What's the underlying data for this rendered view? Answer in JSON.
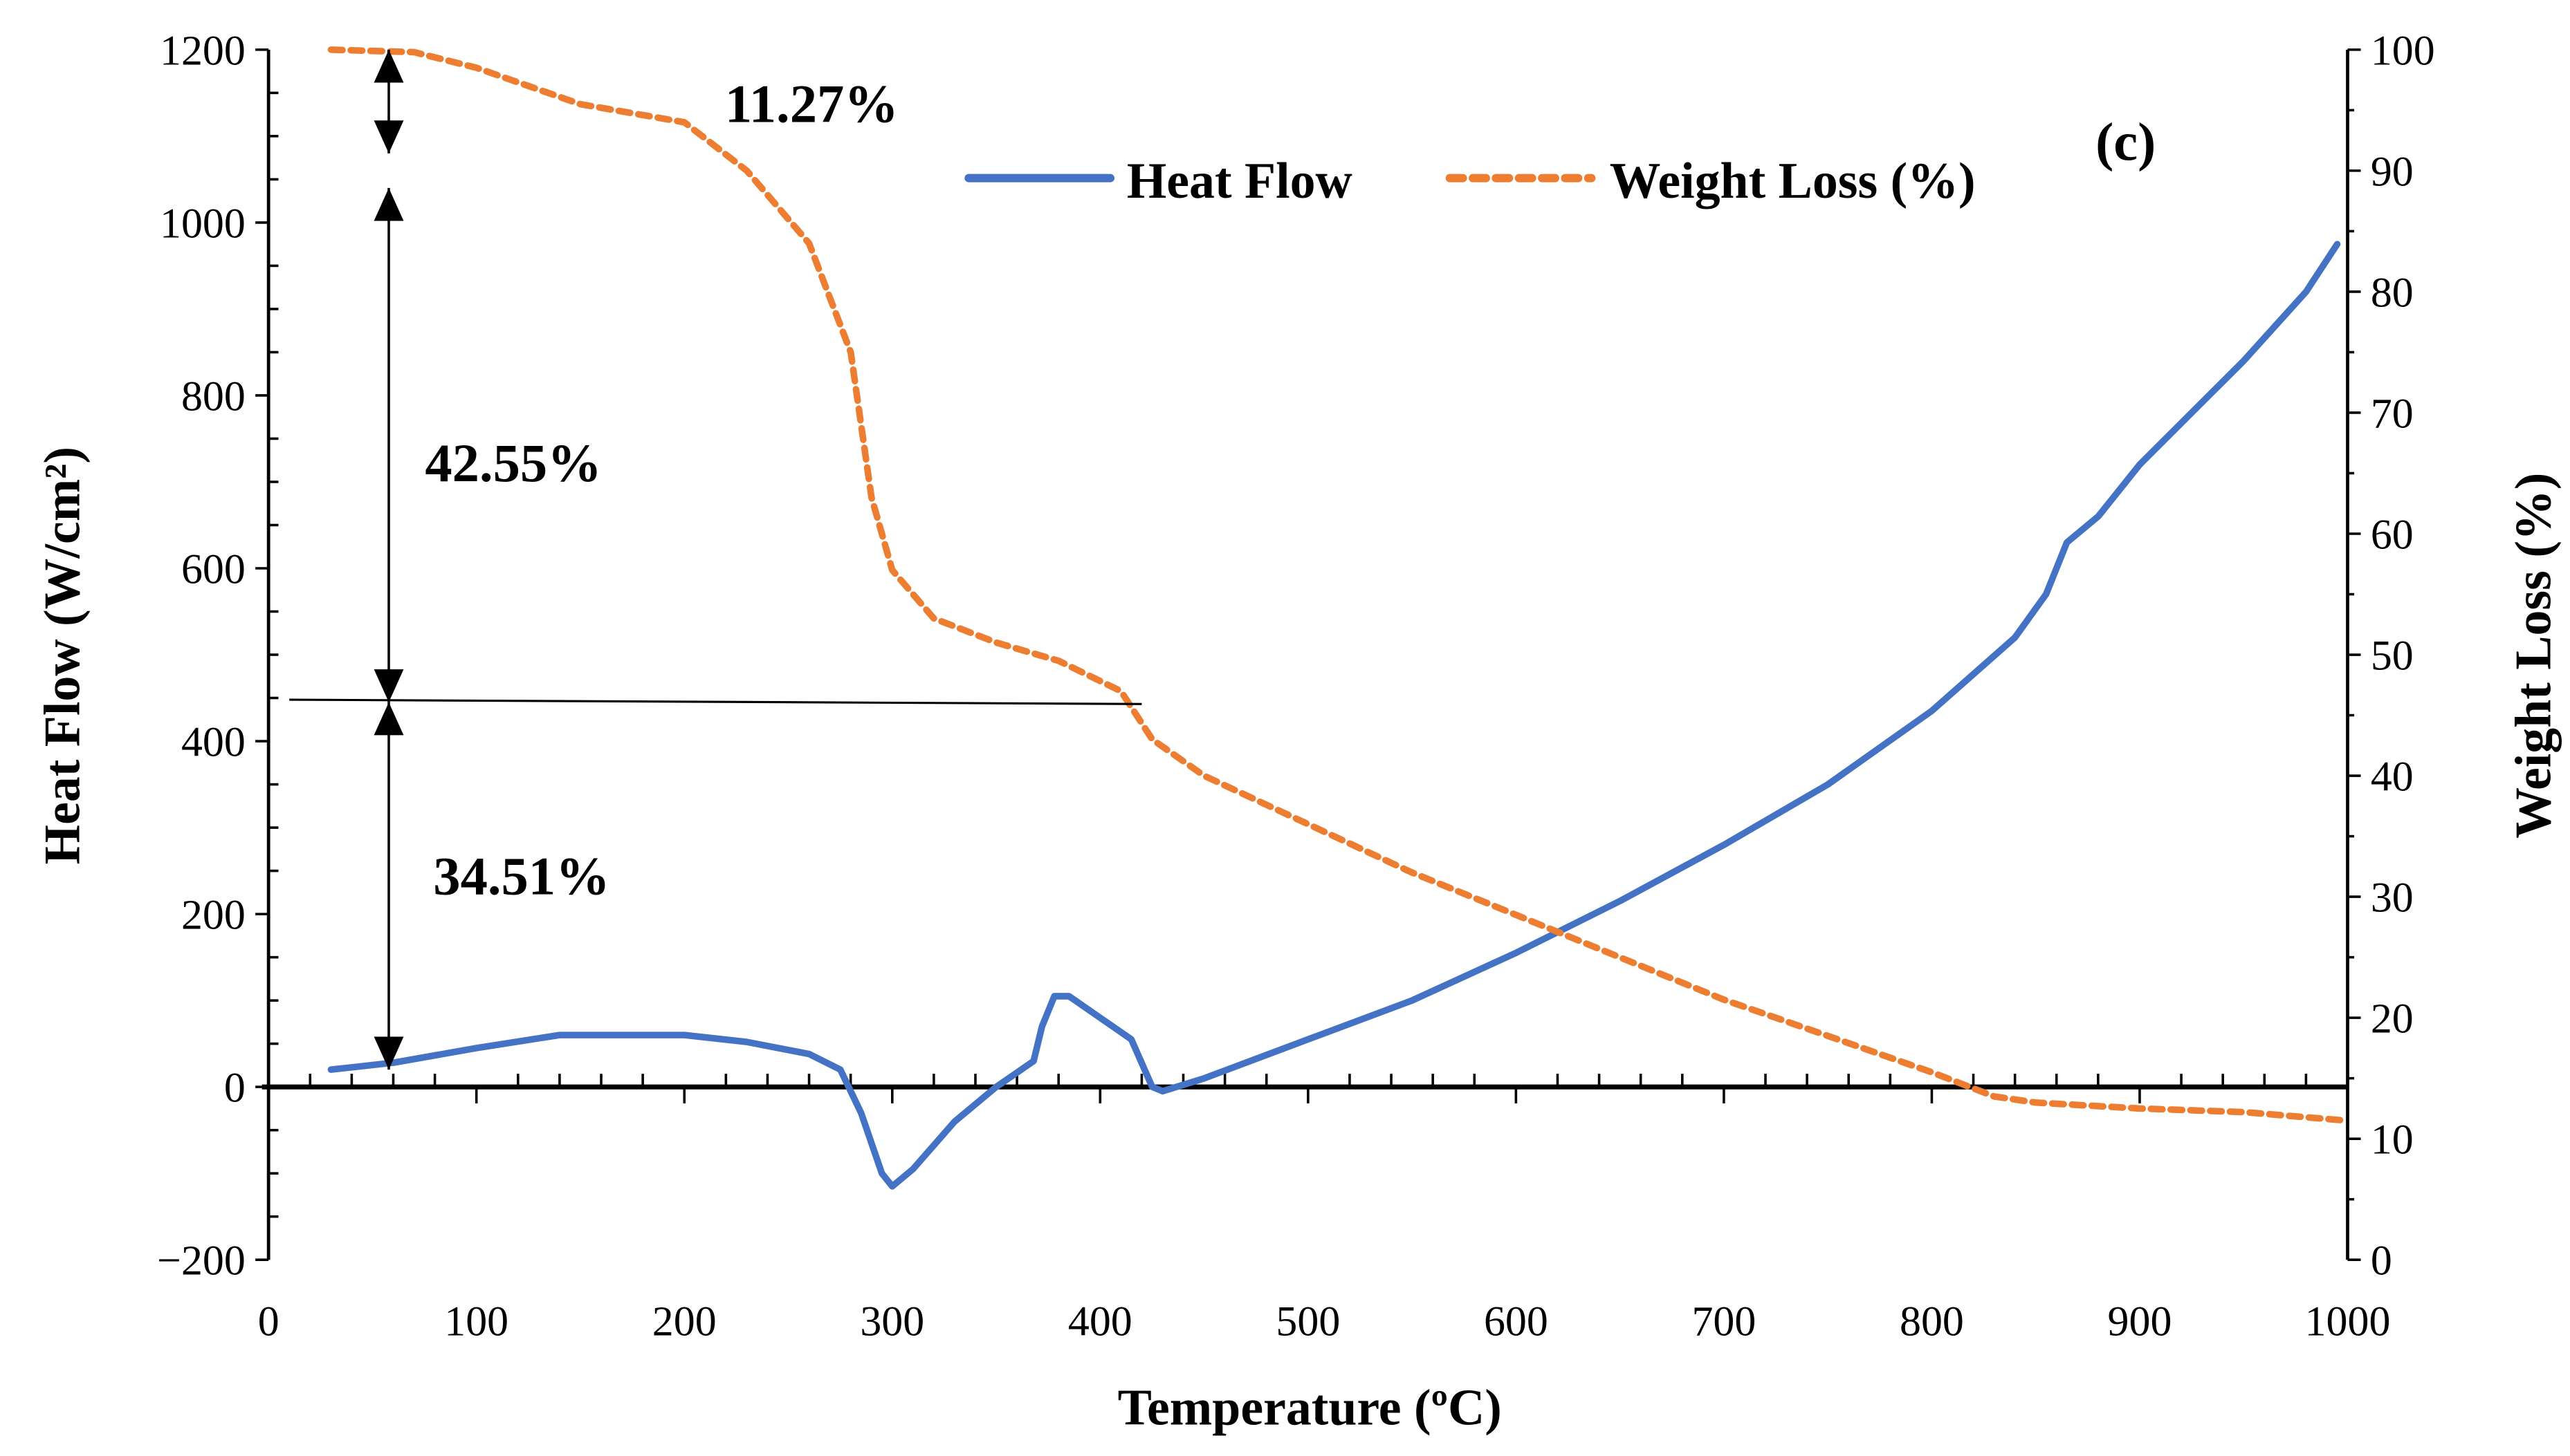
{
  "chart_data": {
    "type": "line",
    "panel_label": "(c)",
    "xlabel": "Temperature (ºC)",
    "ylabel_left": "Heat Flow (W/cm²)",
    "ylabel_right": "Weight Loss (%)",
    "xlim": [
      0,
      1000
    ],
    "ylim_left": [
      -200,
      1200
    ],
    "ylim_right": [
      0,
      100
    ],
    "x_ticks": [
      "0",
      "100",
      "200",
      "300",
      "400",
      "500",
      "600",
      "700",
      "800",
      "900",
      "1000"
    ],
    "y_left_ticks": [
      "−200",
      "0",
      "200",
      "400",
      "600",
      "800",
      "1000",
      "1200"
    ],
    "y_right_ticks": [
      "0",
      "10",
      "20",
      "30",
      "40",
      "50",
      "60",
      "70",
      "80",
      "90",
      "100"
    ],
    "grid": false,
    "legend_position": "top-center",
    "colors": {
      "heat_flow": "#4472C4",
      "weight_loss": "#ED7D31"
    },
    "series": [
      {
        "name": "Heat Flow",
        "axis": "left",
        "style": "solid",
        "x": [
          30,
          60,
          100,
          140,
          200,
          230,
          260,
          275,
          285,
          295,
          300,
          310,
          330,
          350,
          368,
          372,
          378,
          385,
          400,
          415,
          425,
          430,
          450,
          500,
          550,
          600,
          650,
          700,
          750,
          800,
          840,
          855,
          865,
          880,
          900,
          950,
          980,
          995
        ],
        "y": [
          20,
          28,
          45,
          60,
          60,
          52,
          38,
          20,
          -30,
          -100,
          -115,
          -95,
          -40,
          0,
          30,
          70,
          105,
          105,
          80,
          55,
          0,
          -5,
          10,
          55,
          100,
          155,
          215,
          280,
          350,
          435,
          520,
          570,
          630,
          660,
          720,
          840,
          920,
          975
        ]
      },
      {
        "name": "Weight Loss (%)",
        "axis": "right",
        "style": "dashed",
        "x": [
          30,
          70,
          100,
          150,
          200,
          230,
          260,
          280,
          290,
          300,
          320,
          350,
          380,
          410,
          425,
          450,
          500,
          550,
          600,
          650,
          700,
          750,
          800,
          830,
          850,
          900,
          950,
          1000
        ],
        "y": [
          100,
          99.8,
          98.5,
          95.5,
          94,
          90,
          84,
          75,
          63,
          57,
          53,
          51,
          49.5,
          47,
          43,
          40,
          36,
          32,
          28.5,
          25,
          21.5,
          18.5,
          15.5,
          13.5,
          13,
          12.5,
          12.2,
          11.5
        ]
      }
    ],
    "annotations": [
      {
        "text": "11.27%",
        "step_heat_flow_range": [
          1080,
          1200
        ]
      },
      {
        "text": "42.55%",
        "step_heat_flow_range": [
          445,
          1040
        ]
      },
      {
        "text": "34.51%",
        "step_heat_flow_range": [
          20,
          445
        ]
      }
    ],
    "reference_line": {
      "x": [
        10,
        420
      ],
      "y_left": [
        448,
        443
      ]
    }
  }
}
